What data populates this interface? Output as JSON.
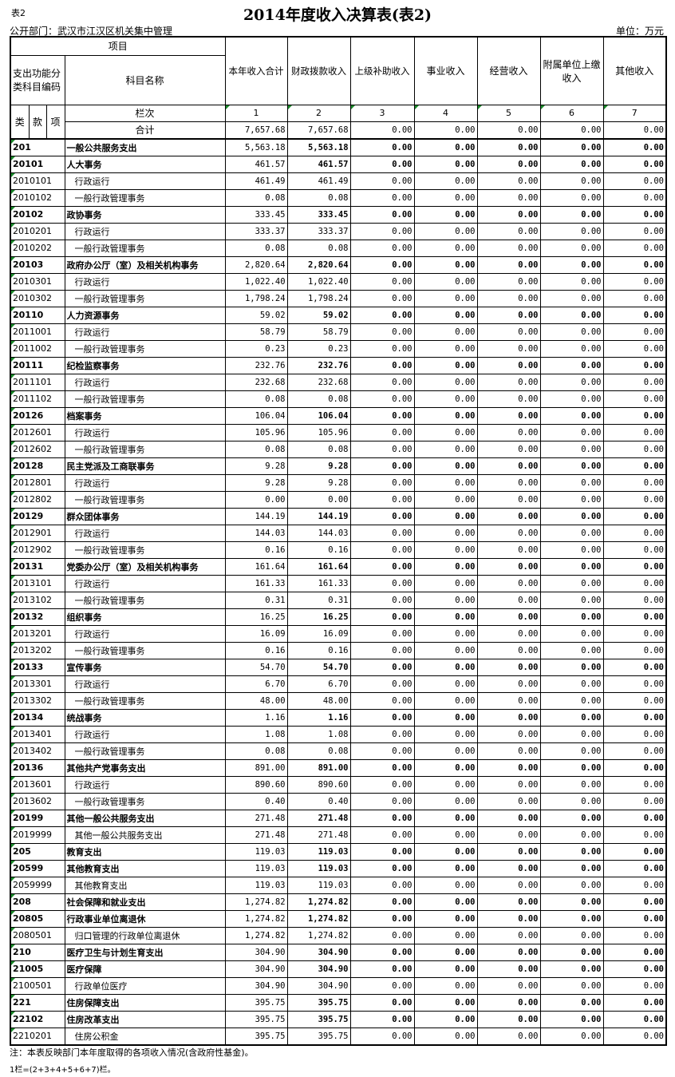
{
  "tag": "表2",
  "title": "2014年度收入决算表(表2)",
  "department": "公开部门：武汉市江汉区机关集中管理",
  "unit": "单位：万元",
  "header": {
    "item": "项目",
    "code_label": "支出功能分类科目编码",
    "name_label": "科目名称",
    "columns": [
      "本年收入合计",
      "财政拨款收入",
      "上级补助收入",
      "事业收入",
      "经营收入",
      "附属单位上缴收入",
      "其他收入"
    ],
    "lei": "类",
    "kuan": "款",
    "xiang": "项",
    "lanci": "栏次",
    "col_numbers": [
      "1",
      "2",
      "3",
      "4",
      "5",
      "6",
      "7"
    ],
    "total_label": "合计",
    "total_values": [
      "7,657.68",
      "7,657.68",
      "0.00",
      "0.00",
      "0.00",
      "0.00",
      "0.00"
    ]
  },
  "rows": [
    [
      "201",
      "一般公共服务支出",
      "5,563.18",
      "5,563.18"
    ],
    [
      "20101",
      "人大事务",
      "461.57",
      "461.57"
    ],
    [
      "2010101",
      "行政运行",
      "461.49",
      "461.49"
    ],
    [
      "2010102",
      "一般行政管理事务",
      "0.08",
      "0.08"
    ],
    [
      "20102",
      "政协事务",
      "333.45",
      "333.45"
    ],
    [
      "2010201",
      "行政运行",
      "333.37",
      "333.37"
    ],
    [
      "2010202",
      "一般行政管理事务",
      "0.08",
      "0.08"
    ],
    [
      "20103",
      "政府办公厅（室）及相关机构事务",
      "2,820.64",
      "2,820.64"
    ],
    [
      "2010301",
      "行政运行",
      "1,022.40",
      "1,022.40"
    ],
    [
      "2010302",
      "一般行政管理事务",
      "1,798.24",
      "1,798.24"
    ],
    [
      "20110",
      "人力资源事务",
      "59.02",
      "59.02"
    ],
    [
      "2011001",
      "行政运行",
      "58.79",
      "58.79"
    ],
    [
      "2011002",
      "一般行政管理事务",
      "0.23",
      "0.23"
    ],
    [
      "20111",
      "纪检监察事务",
      "232.76",
      "232.76"
    ],
    [
      "2011101",
      "行政运行",
      "232.68",
      "232.68"
    ],
    [
      "2011102",
      "一般行政管理事务",
      "0.08",
      "0.08"
    ],
    [
      "20126",
      "档案事务",
      "106.04",
      "106.04"
    ],
    [
      "2012601",
      "行政运行",
      "105.96",
      "105.96"
    ],
    [
      "2012602",
      "一般行政管理事务",
      "0.08",
      "0.08"
    ],
    [
      "20128",
      "民主党派及工商联事务",
      "9.28",
      "9.28"
    ],
    [
      "2012801",
      "行政运行",
      "9.28",
      "9.28"
    ],
    [
      "2012802",
      "一般行政管理事务",
      "0.00",
      "0.00"
    ],
    [
      "20129",
      "群众团体事务",
      "144.19",
      "144.19"
    ],
    [
      "2012901",
      "行政运行",
      "144.03",
      "144.03"
    ],
    [
      "2012902",
      "一般行政管理事务",
      "0.16",
      "0.16"
    ],
    [
      "20131",
      "党委办公厅（室）及相关机构事务",
      "161.64",
      "161.64"
    ],
    [
      "2013101",
      "行政运行",
      "161.33",
      "161.33"
    ],
    [
      "2013102",
      "一般行政管理事务",
      "0.31",
      "0.31"
    ],
    [
      "20132",
      "组织事务",
      "16.25",
      "16.25"
    ],
    [
      "2013201",
      "行政运行",
      "16.09",
      "16.09"
    ],
    [
      "2013202",
      "一般行政管理事务",
      "0.16",
      "0.16"
    ],
    [
      "20133",
      "宣传事务",
      "54.70",
      "54.70"
    ],
    [
      "2013301",
      "行政运行",
      "6.70",
      "6.70"
    ],
    [
      "2013302",
      "一般行政管理事务",
      "48.00",
      "48.00"
    ],
    [
      "20134",
      "统战事务",
      "1.16",
      "1.16"
    ],
    [
      "2013401",
      "行政运行",
      "1.08",
      "1.08"
    ],
    [
      "2013402",
      "一般行政管理事务",
      "0.08",
      "0.08"
    ],
    [
      "20136",
      "其他共产党事务支出",
      "891.00",
      "891.00"
    ],
    [
      "2013601",
      "行政运行",
      "890.60",
      "890.60"
    ],
    [
      "2013602",
      "一般行政管理事务",
      "0.40",
      "0.40"
    ],
    [
      "20199",
      "其他一般公共服务支出",
      "271.48",
      "271.48"
    ],
    [
      "2019999",
      "其他一般公共服务支出",
      "271.48",
      "271.48"
    ],
    [
      "205",
      "教育支出",
      "119.03",
      "119.03"
    ],
    [
      "20599",
      "其他教育支出",
      "119.03",
      "119.03"
    ],
    [
      "2059999",
      "其他教育支出",
      "119.03",
      "119.03"
    ],
    [
      "208",
      "社会保障和就业支出",
      "1,274.82",
      "1,274.82"
    ],
    [
      "20805",
      "行政事业单位离退休",
      "1,274.82",
      "1,274.82"
    ],
    [
      "2080501",
      "归口管理的行政单位离退休",
      "1,274.82",
      "1,274.82"
    ],
    [
      "210",
      "医疗卫生与计划生育支出",
      "304.90",
      "304.90"
    ],
    [
      "21005",
      "医疗保障",
      "304.90",
      "304.90"
    ],
    [
      "2100501",
      "行政单位医疗",
      "304.90",
      "304.90"
    ],
    [
      "221",
      "住房保障支出",
      "395.75",
      "395.75"
    ],
    [
      "22102",
      "住房改革支出",
      "395.75",
      "395.75"
    ],
    [
      "2210201",
      "住房公积金",
      "395.75",
      "395.75"
    ]
  ],
  "zero_value": "0.00",
  "notes": [
    "注：本表反映部门本年度取得的各项收入情况(含政府性基金)。",
    "1栏=(2+3+4+5+6+7)栏。"
  ]
}
